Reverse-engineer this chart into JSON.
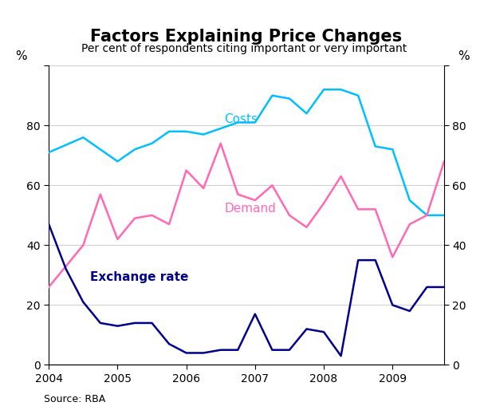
{
  "title": "Factors Explaining Price Changes",
  "subtitle": "Per cent of respondents citing important or very important",
  "ylabel_left": "%",
  "ylabel_right": "%",
  "source": "Source: RBA",
  "ylim": [
    0,
    100
  ],
  "yticks": [
    0,
    20,
    40,
    60,
    80,
    100
  ],
  "xlim": [
    2004.0,
    2009.75
  ],
  "xticks": [
    2004,
    2005,
    2006,
    2007,
    2008,
    2009
  ],
  "costs": {
    "x": [
      2004.0,
      2004.5,
      2004.75,
      2005.0,
      2005.25,
      2005.5,
      2005.75,
      2006.0,
      2006.25,
      2006.5,
      2006.75,
      2007.0,
      2007.25,
      2007.5,
      2007.75,
      2008.0,
      2008.25,
      2008.5,
      2008.75,
      2009.0,
      2009.25,
      2009.5,
      2009.75
    ],
    "y": [
      71,
      76,
      72,
      68,
      72,
      74,
      78,
      78,
      77,
      79,
      81,
      81,
      90,
      89,
      84,
      92,
      92,
      90,
      73,
      72,
      55,
      50,
      50
    ],
    "color": "#00BFFF",
    "label": "Costs",
    "linewidth": 1.8
  },
  "demand": {
    "x": [
      2004.0,
      2004.25,
      2004.5,
      2004.75,
      2005.0,
      2005.25,
      2005.5,
      2005.75,
      2006.0,
      2006.25,
      2006.5,
      2006.75,
      2007.0,
      2007.25,
      2007.5,
      2007.75,
      2008.0,
      2008.25,
      2008.5,
      2008.75,
      2009.0,
      2009.25,
      2009.5,
      2009.75
    ],
    "y": [
      26,
      33,
      40,
      57,
      42,
      49,
      50,
      47,
      65,
      59,
      74,
      57,
      55,
      60,
      50,
      46,
      54,
      63,
      52,
      52,
      36,
      47,
      50,
      68
    ],
    "color": "#FF69B4",
    "label": "Demand",
    "linewidth": 1.8
  },
  "exchange_rate": {
    "x": [
      2004.0,
      2004.25,
      2004.5,
      2004.75,
      2005.0,
      2005.25,
      2005.5,
      2005.75,
      2006.0,
      2006.25,
      2006.5,
      2006.75,
      2007.0,
      2007.25,
      2007.5,
      2007.75,
      2008.0,
      2008.25,
      2008.5,
      2008.75,
      2009.0,
      2009.25,
      2009.5,
      2009.75
    ],
    "y": [
      47,
      32,
      21,
      14,
      13,
      14,
      14,
      7,
      4,
      4,
      5,
      5,
      17,
      5,
      5,
      12,
      11,
      3,
      35,
      35,
      20,
      18,
      26,
      26
    ],
    "color": "#00008B",
    "label": "Exchange rate",
    "linewidth": 1.8
  },
  "background_color": "#ffffff",
  "grid_color": "#d0d0d0",
  "title_fontsize": 15,
  "subtitle_fontsize": 10,
  "tick_fontsize": 10,
  "annotation_fontsize": 11
}
